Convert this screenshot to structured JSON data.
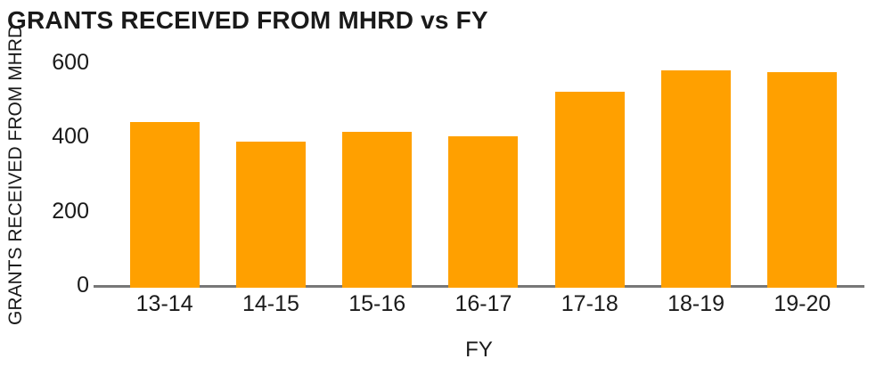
{
  "chart_data": {
    "type": "bar",
    "title": "GRANTS RECEIVED FROM MHRD vs FY",
    "xlabel": "FY",
    "ylabel": "GRANTS RECEIVED FROM MHRD",
    "categories": [
      "13-14",
      "14-15",
      "15-16",
      "16-17",
      "17-18",
      "18-19",
      "19-20"
    ],
    "values": [
      440,
      386,
      414,
      402,
      520,
      578,
      573
    ],
    "yticks": [
      0,
      200,
      400,
      600
    ],
    "ylim": [
      0,
      600
    ],
    "grid": false,
    "legend": false,
    "layout_hints": {
      "orientation": "vertical",
      "tick_label_side": "left",
      "title_position": "top-left"
    },
    "colors": {
      "bar": "#FFA000",
      "axis_line": "#777777",
      "text": "#1A1A1A",
      "background": "#FFFFFF"
    }
  }
}
